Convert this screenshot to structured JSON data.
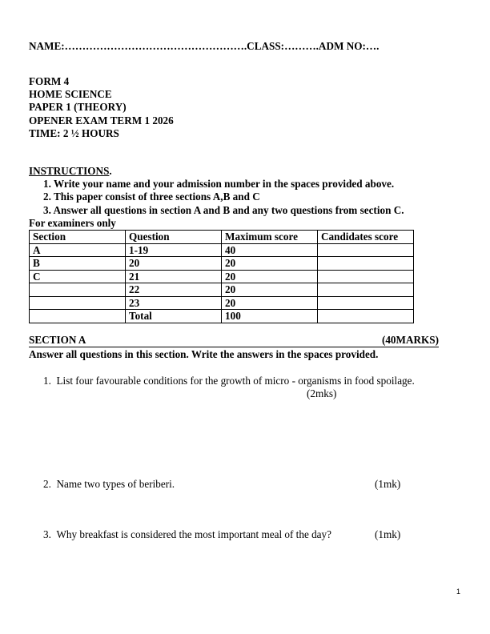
{
  "header": {
    "name_line": "NAME:…………………………………………….CLASS:……….ADM NO:…."
  },
  "title_block": [
    "FORM 4",
    "HOME SCIENCE",
    "PAPER 1 (THEORY)",
    "OPENER EXAM TERM 1 2026",
    "TIME: 2 ½ HOURS"
  ],
  "instructions": {
    "heading": "INSTRUCTIONS",
    "items": [
      "1.  Write your name and your admission number in the spaces provided above.",
      "2.  This paper consist of three sections A,B and C",
      "3.  Answer all questions in section A and B and any two questions from section C."
    ]
  },
  "examiners_label": "For examiners only",
  "score_table": {
    "headers": [
      "Section",
      "Question",
      "Maximum score",
      "Candidates score"
    ],
    "rows": [
      [
        "A",
        "1-19",
        "40",
        ""
      ],
      [
        "B",
        "20",
        "20",
        ""
      ],
      [
        "C",
        "21",
        "20",
        ""
      ],
      [
        "",
        "22",
        "20",
        ""
      ],
      [
        "",
        "23",
        "20",
        ""
      ],
      [
        "",
        "Total",
        "100",
        ""
      ]
    ]
  },
  "section_a": {
    "title": "SECTION A",
    "marks": "(40MARKS)",
    "instruction": "Answer all questions in this section. Write the answers in the spaces provided."
  },
  "questions": [
    {
      "number": "1.",
      "text": "List four favourable conditions for the growth of micro - organisms in food spoilage.",
      "marks": "(2mks)"
    },
    {
      "number": "2.",
      "text": "Name two types of beriberi.",
      "marks": "(1mk)"
    },
    {
      "number": "3.",
      "text": "Why breakfast is considered the most important meal of the day?",
      "marks": "(1mk)"
    }
  ],
  "page_number": "1"
}
